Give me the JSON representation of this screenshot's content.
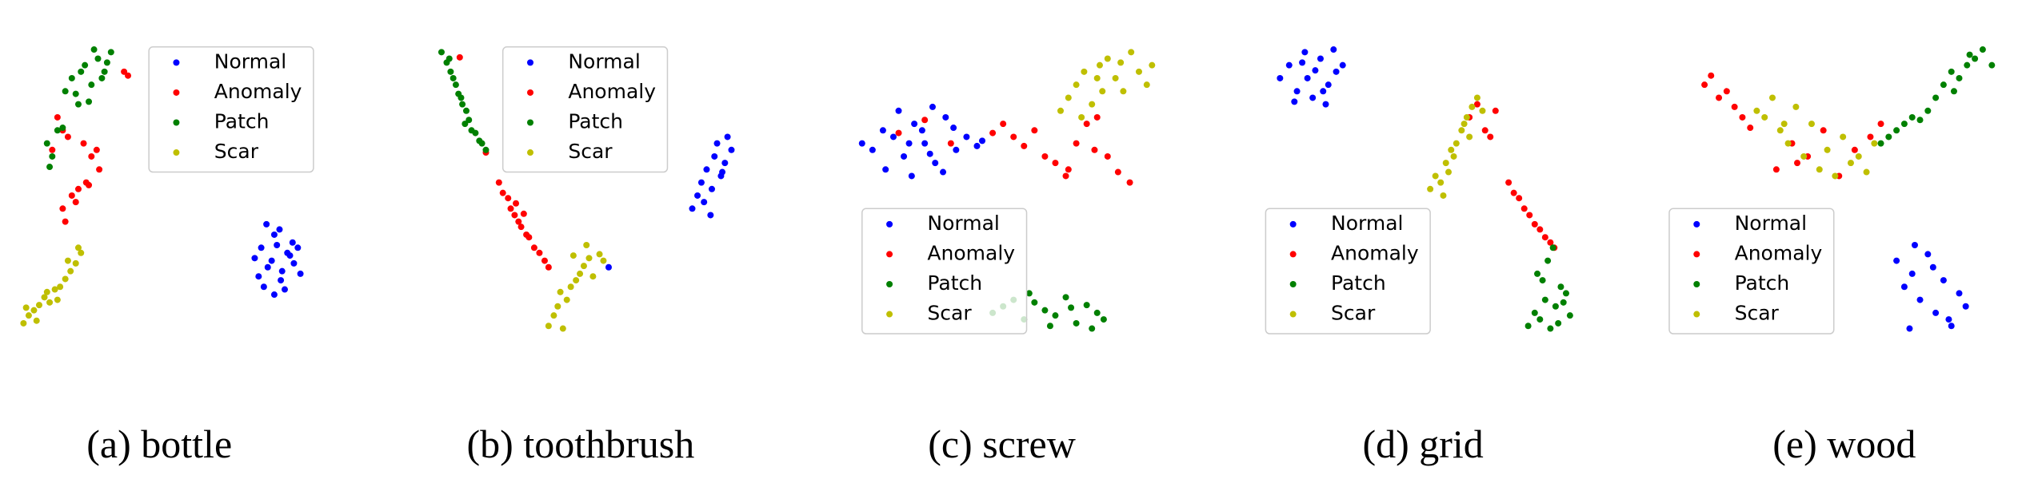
{
  "chart_data": [
    {
      "type": "scatter",
      "title": "(a) bottle",
      "xlim": [
        0,
        300
      ],
      "ylim": [
        0,
        230
      ],
      "legend": "upper center",
      "series": [
        {
          "name": "Normal",
          "color": "#0000ff",
          "x": [
            195,
            200,
            205,
            210,
            215,
            220,
            225,
            230,
            198,
            204,
            212,
            218,
            224,
            208,
            216,
            202,
            214,
            222,
            210,
            228
          ],
          "values": [
            62,
            70,
            55,
            80,
            45,
            66,
            58,
            50,
            48,
            88,
            72,
            38,
            74,
            60,
            52,
            40,
            84,
            64,
            34,
            70
          ]
        },
        {
          "name": "Anomaly",
          "color": "#ff0000",
          "x": [
            95,
            98,
            44,
            48,
            40,
            52,
            64,
            70,
            76,
            74,
            66,
            48,
            55,
            60,
            68,
            50,
            58
          ],
          "values": [
            205,
            202,
            170,
            160,
            145,
            155,
            150,
            140,
            130,
            145,
            120,
            100,
            110,
            115,
            118,
            90,
            105
          ]
        },
        {
          "name": "Patch",
          "color": "#008000",
          "x": [
            50,
            55,
            60,
            65,
            70,
            75,
            80,
            85,
            58,
            68,
            78,
            62,
            72,
            82,
            36,
            40,
            44,
            38,
            48
          ],
          "values": [
            190,
            200,
            180,
            210,
            195,
            215,
            205,
            220,
            188,
            182,
            200,
            205,
            222,
            212,
            150,
            140,
            160,
            132,
            162
          ]
        },
        {
          "name": "Scar",
          "color": "#bfbf00",
          "x": [
            18,
            22,
            26,
            30,
            34,
            38,
            42,
            46,
            50,
            54,
            58,
            62,
            20,
            28,
            36,
            44,
            52,
            60
          ],
          "values": [
            12,
            18,
            22,
            26,
            32,
            28,
            38,
            40,
            46,
            52,
            58,
            66,
            24,
            14,
            36,
            30,
            60,
            70
          ]
        }
      ]
    },
    {
      "type": "scatter",
      "title": "(b) toothbrush",
      "xlim": [
        0,
        300
      ],
      "ylim": [
        0,
        230
      ],
      "legend": "upper left",
      "series": [
        {
          "name": "Normal",
          "color": "#0000ff",
          "x": [
            157,
            221,
            225,
            228,
            232,
            235,
            238,
            240,
            243,
            246,
            248,
            251,
            230,
            236,
            244
          ],
          "values": [
            55,
            100,
            110,
            120,
            130,
            95,
            140,
            150,
            125,
            135,
            155,
            145,
            105,
            115,
            128
          ]
        },
        {
          "name": "Anomaly",
          "color": "#ff0000",
          "x": [
            43,
            63,
            73,
            76,
            80,
            82,
            85,
            88,
            90,
            94,
            96,
            100,
            104,
            108,
            111,
            86,
            92
          ],
          "values": [
            216,
            143,
            120,
            112,
            108,
            100,
            95,
            90,
            86,
            80,
            78,
            70,
            66,
            60,
            55,
            104,
            96
          ]
        },
        {
          "name": "Patch",
          "color": "#008000",
          "x": [
            29,
            33,
            36,
            38,
            40,
            42,
            45,
            48,
            50,
            52,
            55,
            58,
            60,
            63,
            35,
            44,
            47
          ],
          "values": [
            220,
            212,
            205,
            200,
            195,
            188,
            180,
            175,
            168,
            160,
            158,
            152,
            150,
            145,
            215,
            185,
            165
          ]
        },
        {
          "name": "Scar",
          "color": "#bfbf00",
          "x": [
            111,
            115,
            118,
            122,
            125,
            128,
            132,
            135,
            138,
            142,
            145,
            150,
            153,
            120,
            130,
            140
          ],
          "values": [
            10,
            18,
            25,
            8,
            30,
            40,
            45,
            50,
            56,
            62,
            48,
            65,
            60,
            36,
            64,
            72
          ]
        }
      ]
    },
    {
      "type": "scatter",
      "title": "(c) screw",
      "xlim": [
        0,
        300
      ],
      "ylim": [
        0,
        230
      ],
      "legend": "lower left",
      "series": [
        {
          "name": "Normal",
          "color": "#0000ff",
          "x": [
            42,
            50,
            58,
            66,
            74,
            82,
            90,
            98,
            106,
            114,
            122,
            130,
            134,
            60,
            70,
            80,
            88,
            96,
            104,
            112,
            78,
            94
          ],
          "values": [
            150,
            145,
            160,
            155,
            140,
            165,
            150,
            135,
            170,
            145,
            155,
            148,
            152,
            130,
            175,
            125,
            160,
            178,
            128,
            162,
            150,
            142
          ]
        },
        {
          "name": "Anomaly",
          "color": "#ff0000",
          "x": [
            70,
            90,
            110,
            142,
            150,
            158,
            166,
            174,
            182,
            190,
            198,
            206,
            214,
            222,
            230,
            238,
            247,
            200,
            220
          ],
          "values": [
            158,
            168,
            150,
            158,
            165,
            155,
            148,
            160,
            140,
            135,
            125,
            150,
            165,
            170,
            140,
            128,
            120,
            130,
            145
          ]
        },
        {
          "name": "Patch",
          "color": "#008000",
          "x": [
            142,
            150,
            158,
            166,
            174,
            182,
            190,
            198,
            206,
            214,
            222,
            227,
            170,
            186,
            202,
            218
          ],
          "values": [
            20,
            25,
            30,
            15,
            28,
            22,
            18,
            32,
            12,
            26,
            20,
            15,
            35,
            10,
            24,
            8
          ]
        },
        {
          "name": "Scar",
          "color": "#bfbf00",
          "x": [
            194,
            200,
            206,
            212,
            218,
            224,
            230,
            236,
            242,
            248,
            254,
            260,
            264,
            210,
            226,
            240,
            222
          ],
          "values": [
            175,
            185,
            195,
            205,
            180,
            210,
            215,
            200,
            190,
            220,
            205,
            195,
            210,
            170,
            190,
            212,
            200
          ]
        }
      ]
    },
    {
      "type": "scatter",
      "title": "(d) grid",
      "xlim": [
        0,
        300
      ],
      "ylim": [
        0,
        230
      ],
      "legend": "lower left",
      "series": [
        {
          "name": "Normal",
          "color": "#0000ff",
          "x": [
            53,
            60,
            66,
            72,
            78,
            84,
            90,
            96,
            101,
            64,
            74,
            86,
            94,
            70,
            80,
            88
          ],
          "values": [
            200,
            210,
            190,
            220,
            185,
            215,
            195,
            205,
            210,
            182,
            200,
            190,
            222,
            212,
            206,
            180
          ]
        },
        {
          "name": "Anomaly",
          "color": "#ff0000",
          "x": [
            198,
            204,
            210,
            214,
            218,
            228,
            232,
            236,
            240,
            244,
            248,
            252,
            256,
            260,
            263
          ],
          "values": [
            170,
            180,
            160,
            155,
            175,
            120,
            112,
            108,
            100,
            95,
            88,
            84,
            78,
            74,
            70
          ]
        },
        {
          "name": "Patch",
          "color": "#008000",
          "x": [
            243,
            248,
            252,
            256,
            260,
            264,
            268,
            272,
            275,
            250,
            258,
            266,
            262,
            254,
            270
          ],
          "values": [
            10,
            20,
            15,
            30,
            8,
            25,
            40,
            35,
            18,
            50,
            60,
            12,
            70,
            45,
            28
          ]
        },
        {
          "name": "Scar",
          "color": "#bfbf00",
          "x": [
            168,
            172,
            176,
            180,
            184,
            188,
            192,
            196,
            200,
            204,
            208,
            178,
            186,
            194,
            182,
            198
          ],
          "values": [
            115,
            125,
            120,
            135,
            145,
            150,
            160,
            170,
            178,
            185,
            175,
            110,
            140,
            165,
            128,
            155
          ]
        }
      ]
    },
    {
      "type": "scatter",
      "title": "(e) wood",
      "xlim": [
        0,
        300
      ],
      "ylim": [
        0,
        230
      ],
      "legend": "lower left",
      "series": [
        {
          "name": "Normal",
          "color": "#0000ff",
          "x": [
            216,
            222,
            228,
            234,
            240,
            246,
            252,
            258,
            264,
            269,
            230,
            244,
            256,
            226
          ],
          "values": [
            60,
            40,
            50,
            30,
            65,
            20,
            45,
            10,
            35,
            25,
            72,
            55,
            15,
            8
          ]
        },
        {
          "name": "Anomaly",
          "color": "#ff0000",
          "x": [
            69,
            74,
            80,
            86,
            92,
            98,
            104,
            124,
            136,
            148,
            160,
            172,
            184,
            196,
            204,
            140
          ],
          "values": [
            195,
            202,
            185,
            190,
            178,
            170,
            162,
            130,
            150,
            140,
            160,
            125,
            145,
            155,
            165,
            135
          ]
        },
        {
          "name": "Patch",
          "color": "#008000",
          "x": [
            204,
            210,
            216,
            222,
            228,
            234,
            240,
            246,
            252,
            258,
            264,
            270,
            276,
            282,
            289,
            260,
            272
          ],
          "values": [
            150,
            155,
            160,
            165,
            170,
            168,
            175,
            185,
            195,
            205,
            200,
            210,
            215,
            222,
            210,
            190,
            218
          ]
        },
        {
          "name": "Scar",
          "color": "#bfbf00",
          "x": [
            109,
            115,
            121,
            127,
            133,
            139,
            145,
            151,
            157,
            163,
            169,
            175,
            181,
            187,
            193,
            199,
            130
          ],
          "values": [
            175,
            170,
            185,
            160,
            150,
            178,
            140,
            165,
            130,
            145,
            125,
            155,
            135,
            140,
            128,
            150,
            165
          ]
        }
      ]
    }
  ]
}
